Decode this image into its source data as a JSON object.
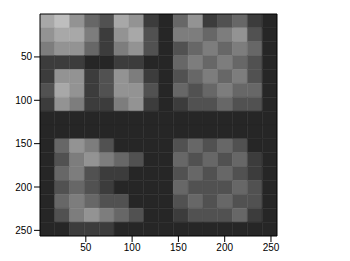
{
  "chart_data": {
    "type": "heatmap",
    "xlim": [
      0.5,
      256.5
    ],
    "ylim": [
      256.5,
      0.5
    ],
    "xticks": [
      50,
      100,
      150,
      200,
      250
    ],
    "yticks": [
      50,
      100,
      150,
      200,
      250
    ],
    "grid": false,
    "cells": [
      [
        0.6,
        0.7,
        0.5,
        0.3,
        0.2,
        0.6,
        0.5,
        0.1,
        0,
        0.3,
        0.5,
        0.1,
        0.2,
        0.3,
        0.1,
        0
      ],
      [
        0.5,
        0.6,
        0.6,
        0.4,
        0.1,
        0.5,
        0.6,
        0.2,
        0,
        0.4,
        0.4,
        0.3,
        0.4,
        0.5,
        0.2,
        0
      ],
      [
        0.4,
        0.5,
        0.5,
        0.3,
        0.1,
        0.4,
        0.5,
        0.2,
        0,
        0.2,
        0.3,
        0.4,
        0.3,
        0.4,
        0.3,
        0
      ],
      [
        0.1,
        0.1,
        0.1,
        0,
        0,
        0.1,
        0.1,
        0,
        0,
        0.3,
        0.4,
        0.3,
        0.4,
        0.3,
        0.2,
        0
      ],
      [
        0.1,
        0.5,
        0.5,
        0.1,
        0.2,
        0.5,
        0.4,
        0.1,
        0,
        0.2,
        0.3,
        0.4,
        0.3,
        0.4,
        0.2,
        0
      ],
      [
        0.2,
        0.6,
        0.5,
        0.1,
        0.2,
        0.5,
        0.5,
        0.2,
        0,
        0.3,
        0.2,
        0.3,
        0.4,
        0.3,
        0.3,
        0
      ],
      [
        0.1,
        0.5,
        0.4,
        0.1,
        0.1,
        0.4,
        0.5,
        0.1,
        0,
        0.1,
        0.2,
        0.2,
        0.3,
        0.2,
        0.2,
        0
      ],
      [
        0,
        0,
        0,
        0,
        0,
        0,
        0,
        0,
        0,
        0,
        0,
        0,
        0,
        0,
        0,
        0
      ],
      [
        0,
        0,
        0,
        0,
        0,
        0,
        0,
        0,
        0,
        0,
        0,
        0,
        0,
        0,
        0,
        0
      ],
      [
        0,
        0.3,
        0.5,
        0.4,
        0.2,
        0,
        0,
        0,
        0,
        0.2,
        0.3,
        0.2,
        0.3,
        0.2,
        0,
        0
      ],
      [
        0,
        0.2,
        0.4,
        0.5,
        0.4,
        0.3,
        0.2,
        0,
        0,
        0.3,
        0.2,
        0.3,
        0.2,
        0.3,
        0.1,
        0
      ],
      [
        0,
        0.3,
        0.4,
        0.2,
        0.1,
        0.1,
        0,
        0,
        0,
        0.2,
        0.3,
        0.2,
        0.3,
        0.2,
        0.1,
        0
      ],
      [
        0,
        0.2,
        0.3,
        0.2,
        0.1,
        0,
        0,
        0,
        0,
        0.3,
        0.2,
        0.2,
        0.2,
        0.3,
        0.2,
        0
      ],
      [
        0,
        0.3,
        0.4,
        0.3,
        0.2,
        0.2,
        0,
        0,
        0,
        0.2,
        0.3,
        0.2,
        0.3,
        0.2,
        0.2,
        0
      ],
      [
        0,
        0.2,
        0.4,
        0.5,
        0.4,
        0.3,
        0.2,
        0,
        0,
        0.1,
        0.2,
        0.2,
        0.2,
        0.3,
        0.1,
        0
      ],
      [
        0,
        0,
        0.1,
        0.1,
        0.1,
        0,
        0,
        0,
        0,
        0,
        0,
        0,
        0,
        0,
        0,
        0
      ]
    ]
  }
}
